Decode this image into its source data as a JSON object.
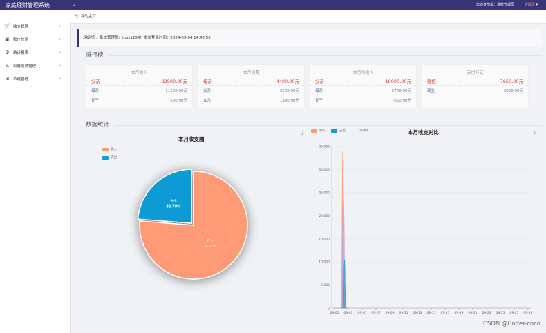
{
  "app": {
    "title": "家庭理财管理系统"
  },
  "sidebar": {
    "items": [
      {
        "label": "收支管理",
        "icon": "cart-icon"
      },
      {
        "label": "账户总览",
        "icon": "wallet-icon"
      },
      {
        "label": "统计报表",
        "icon": "settings-icon"
      },
      {
        "label": "家庭成员管理",
        "icon": "user-icon"
      },
      {
        "label": "系统管理",
        "icon": "grid-icon"
      }
    ]
  },
  "header": {
    "collapse_label": "‹",
    "user_info": "您的身份是：系统管理员",
    "user_menu": "管理员"
  },
  "tabs": [
    {
      "label": "我的主页"
    }
  ],
  "welcome": "欢迎您，系统管理员：jbus1234！本次登录时间：2024-09-04 14:48:55",
  "ranking": {
    "title": "排行榜",
    "cards": [
      {
        "title": "本月收入",
        "rows": [
          {
            "name": "父亲",
            "value": "22500.00元"
          },
          {
            "name": "母亲",
            "value": "11100.00元"
          },
          {
            "name": "长子",
            "value": "500.00元"
          }
        ]
      },
      {
        "title": "本月消费",
        "rows": [
          {
            "name": "母亲",
            "value": "4400.00元"
          },
          {
            "name": "父亲",
            "value": "3500.00元"
          },
          {
            "name": "女儿",
            "value": "1390.00元"
          }
        ]
      },
      {
        "title": "本月净收入",
        "rows": [
          {
            "name": "父亲",
            "value": "19000.00元"
          },
          {
            "name": "母亲",
            "value": "6700.00元"
          },
          {
            "name": "长子",
            "value": "-650.00元"
          }
        ]
      },
      {
        "title": "支付方式",
        "rows": [
          {
            "name": "微信",
            "value": "7650.00元"
          },
          {
            "name": "现金",
            "value": "2990.00元"
          }
        ]
      }
    ]
  },
  "stats": {
    "title": "数据统计"
  },
  "colors": {
    "brand": "#373577",
    "income": "#ff9a76",
    "expense": "#119bd6",
    "net": "#b7a7e0",
    "highlight": "#d9363e"
  },
  "chart_data": [
    {
      "type": "pie",
      "title": "本月收支图",
      "legend": [
        "收入",
        "支出"
      ],
      "slices": [
        {
          "name": "收入",
          "value": 76.22,
          "label": "76.22%"
        },
        {
          "name": "支出",
          "value": 23.78,
          "label": "23.78%"
        }
      ]
    },
    {
      "type": "area",
      "title": "本月收支对比",
      "legend": [
        "收入",
        "支出",
        "净收入"
      ],
      "x": [
        "09-01",
        "09-03",
        "09-05",
        "09-07",
        "09-09",
        "09-11",
        "09-13",
        "09-15",
        "09-17",
        "09-19",
        "09-21",
        "09-23",
        "09-25",
        "09-27",
        "09-29"
      ],
      "ylim": [
        0,
        35000
      ],
      "yticks": [
        "0",
        "5,000",
        "10,000",
        "15,000",
        "20,000",
        "25,000",
        "30,000",
        "35,000"
      ],
      "series": [
        {
          "name": "收入",
          "points": [
            [
              2.3,
              0
            ],
            [
              2.95,
              0
            ],
            [
              3.2,
              34000
            ],
            [
              3.45,
              0
            ],
            [
              4,
              0
            ]
          ]
        },
        {
          "name": "净收入",
          "points": [
            [
              2.3,
              0
            ],
            [
              3.0,
              0
            ],
            [
              3.3,
              23500
            ],
            [
              3.6,
              0
            ],
            [
              4,
              0
            ]
          ]
        },
        {
          "name": "支出",
          "points": [
            [
              3.0,
              0
            ],
            [
              3.25,
              0
            ],
            [
              3.45,
              10500
            ],
            [
              3.65,
              0
            ],
            [
              4,
              0
            ]
          ]
        }
      ]
    }
  ],
  "watermark": "CSDN @Coder-coco"
}
